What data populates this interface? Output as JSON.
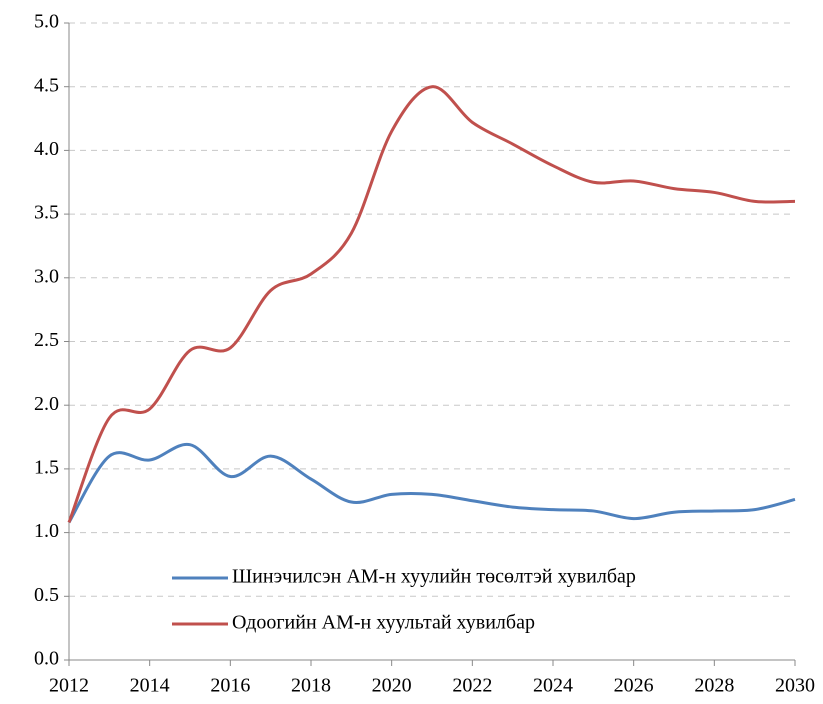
{
  "chart_data": {
    "type": "line",
    "x": [
      2012,
      2013,
      2014,
      2015,
      2016,
      2017,
      2018,
      2019,
      2020,
      2021,
      2022,
      2023,
      2024,
      2025,
      2026,
      2027,
      2028,
      2029,
      2030
    ],
    "series": [
      {
        "name": "Шинэчилсэн АМ-н хуулийн төсөлтэй хувилбар",
        "color": "#4f81bd",
        "values": [
          1.08,
          1.6,
          1.57,
          1.69,
          1.44,
          1.6,
          1.42,
          1.24,
          1.3,
          1.3,
          1.25,
          1.2,
          1.18,
          1.17,
          1.11,
          1.16,
          1.17,
          1.18,
          1.26
        ]
      },
      {
        "name": "Одоогийн АМ-н хуультай хувилбар",
        "color": "#c0504d",
        "values": [
          1.08,
          1.9,
          1.97,
          2.43,
          2.45,
          2.9,
          3.03,
          3.35,
          4.15,
          4.5,
          4.22,
          4.05,
          3.88,
          3.75,
          3.76,
          3.7,
          3.67,
          3.6,
          3.6
        ]
      }
    ],
    "xlim": [
      2012,
      2030
    ],
    "xticks": [
      2012,
      2014,
      2016,
      2018,
      2020,
      2022,
      2024,
      2026,
      2028,
      2030
    ],
    "ylim": [
      0,
      5
    ],
    "yticks": [
      {
        "value": 0,
        "label": "0.0"
      },
      {
        "value": 0.5,
        "label": "0.5"
      },
      {
        "value": 1,
        "label": "1.0"
      },
      {
        "value": 1.5,
        "label": "1.5"
      },
      {
        "value": 2,
        "label": "2.0"
      },
      {
        "value": 2.5,
        "label": "2.5"
      },
      {
        "value": 3,
        "label": "3.0"
      },
      {
        "value": 3.5,
        "label": "3.5"
      },
      {
        "value": 4,
        "label": "4.0"
      },
      {
        "value": 4.5,
        "label": "4.5"
      },
      {
        "value": 5,
        "label": "5.0"
      }
    ],
    "grid": true,
    "smooth": true,
    "legend": "bottom"
  }
}
